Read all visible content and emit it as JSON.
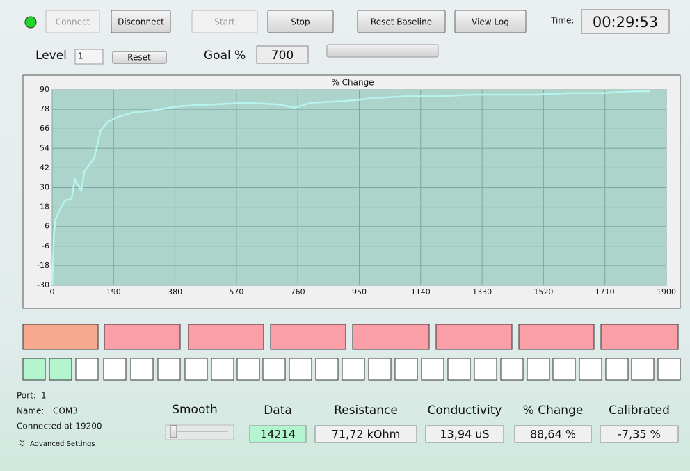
{
  "toolbar": {
    "buttons": [
      "Connect",
      "Disconnect",
      "Start",
      "Stop",
      "Reset Baseline",
      "View Log"
    ],
    "time_label": "Time:",
    "time": "00:29:53"
  },
  "level": {
    "label": "Level",
    "value": "1",
    "reset": "Reset"
  },
  "goal": {
    "label": "Goal %",
    "value": "700"
  },
  "chart_data": {
    "type": "line",
    "title": "% Change",
    "x": [
      0,
      5,
      10,
      20,
      40,
      60,
      70,
      90,
      100,
      130,
      150,
      170,
      200,
      250,
      300,
      400,
      500,
      600,
      700,
      750,
      800,
      900,
      950,
      1000,
      1100,
      1200,
      1300,
      1400,
      1500,
      1600,
      1700,
      1800,
      1850
    ],
    "values": [
      -30,
      0,
      10,
      15,
      22,
      23,
      35,
      28,
      40,
      48,
      65,
      70,
      73,
      76,
      77,
      80,
      81,
      82,
      81,
      79,
      82,
      83,
      84,
      85,
      86,
      86,
      87,
      87,
      87,
      88,
      88,
      89,
      89
    ],
    "color": "#b8f4ee",
    "xlim": [
      0,
      1900
    ],
    "ylim": [
      -30,
      90
    ],
    "xticks": [
      0,
      190,
      380,
      570,
      760,
      950,
      1140,
      1330,
      1520,
      1710,
      1900
    ],
    "yticks": [
      -30,
      -18,
      -6,
      6,
      18,
      30,
      42,
      54,
      66,
      78,
      90
    ],
    "grid": true
  },
  "status": {
    "port_label": "Port:",
    "port": "1",
    "name_label": "Name:",
    "name": "COM3",
    "connection": "Connected at 19200",
    "advanced": "Advanced Settings"
  },
  "smooth_label": "Smooth",
  "readouts": [
    {
      "label": "Data",
      "value": "14214"
    },
    {
      "label": "Resistance",
      "value": "71,72 kOhm"
    },
    {
      "label": "Conductivity",
      "value": "13,94 uS"
    },
    {
      "label": "% Change",
      "value": "88,64 %"
    },
    {
      "label": "Calibrated",
      "value": "-7,35 %"
    }
  ]
}
